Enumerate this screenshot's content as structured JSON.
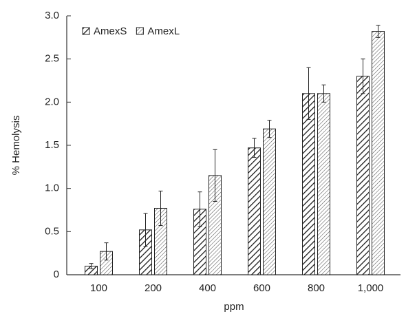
{
  "chart_data": {
    "type": "bar",
    "x_label": "ppm",
    "y_label": "% Hemolysis",
    "categories": [
      "100",
      "200",
      "400",
      "600",
      "800",
      "1,000"
    ],
    "series": [
      {
        "name": "AmexS",
        "color": "#1a1a1a",
        "values": [
          0.1,
          0.52,
          0.76,
          1.47,
          2.1,
          2.3
        ],
        "errors": [
          0.03,
          0.19,
          0.2,
          0.11,
          0.3,
          0.2
        ]
      },
      {
        "name": "AmexL",
        "color": "#555555",
        "values": [
          0.27,
          0.77,
          1.15,
          1.69,
          2.1,
          2.82
        ],
        "errors": [
          0.1,
          0.2,
          0.3,
          0.1,
          0.1,
          0.07
        ]
      }
    ],
    "ylim": [
      0,
      3
    ],
    "yticks": [
      0,
      0.5,
      {
        "value": 1,
        "label": "1.0"
      },
      1.5,
      {
        "value": 2,
        "label": "2.0"
      },
      2.5,
      {
        "value": 3,
        "label": "3.0"
      }
    ],
    "legend": "top-left",
    "grid": false
  }
}
